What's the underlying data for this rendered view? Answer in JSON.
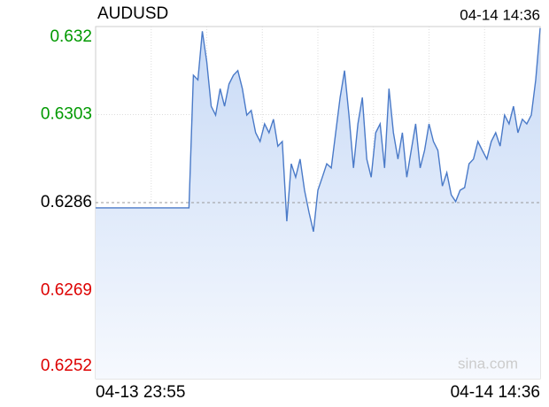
{
  "chart_data": {
    "type": "line",
    "title": "AUDUSD",
    "timestamp": "04-14 14:36",
    "watermark": "sina.com",
    "xlim": [
      0,
      100
    ],
    "xticks": [
      {
        "value": 0,
        "label": "04-13 23:55"
      },
      {
        "value": 100,
        "label": "04-14 14:36"
      }
    ],
    "ylim": [
      0.6252,
      0.632
    ],
    "yticks": [
      0.6252,
      0.6269,
      0.6286,
      0.6303,
      0.632
    ],
    "reference_line": 0.6286,
    "up_color": "#009900",
    "down_color": "#dd0000",
    "flat_color": "#000000",
    "grid": true,
    "series": [
      {
        "color": "#4a7ac8",
        "values": [
          0.6285,
          0.6285,
          0.6285,
          0.6285,
          0.6285,
          0.6285,
          0.6285,
          0.6285,
          0.6285,
          0.6285,
          0.6285,
          0.6285,
          0.6285,
          0.6285,
          0.6285,
          0.6285,
          0.6285,
          0.6285,
          0.6285,
          0.6285,
          0.6285,
          0.6285,
          0.63106,
          0.63097,
          0.63191,
          0.63132,
          0.63046,
          0.63029,
          0.6308,
          0.63046,
          0.63089,
          0.63106,
          0.63115,
          0.6308,
          0.63029,
          0.63038,
          0.62995,
          0.62978,
          0.63012,
          0.62995,
          0.63021,
          0.62969,
          0.62978,
          0.62824,
          0.62935,
          0.62909,
          0.62944,
          0.62884,
          0.62841,
          0.62804,
          0.62884,
          0.62909,
          0.62935,
          0.62927,
          0.62995,
          0.63063,
          0.63115,
          0.63029,
          0.62927,
          0.63012,
          0.63063,
          0.62944,
          0.62909,
          0.62995,
          0.63012,
          0.62927,
          0.6308,
          0.62995,
          0.62944,
          0.62995,
          0.62909,
          0.62961,
          0.63012,
          0.62927,
          0.62961,
          0.63012,
          0.62978,
          0.62961,
          0.62892,
          0.62918,
          0.62875,
          0.62862,
          0.62884,
          0.62889,
          0.62935,
          0.62944,
          0.62978,
          0.62961,
          0.62944,
          0.62978,
          0.62995,
          0.62969,
          0.63029,
          0.63012,
          0.63046,
          0.62995,
          0.63021,
          0.63012,
          0.63029,
          0.63097,
          0.63197
        ]
      }
    ]
  }
}
